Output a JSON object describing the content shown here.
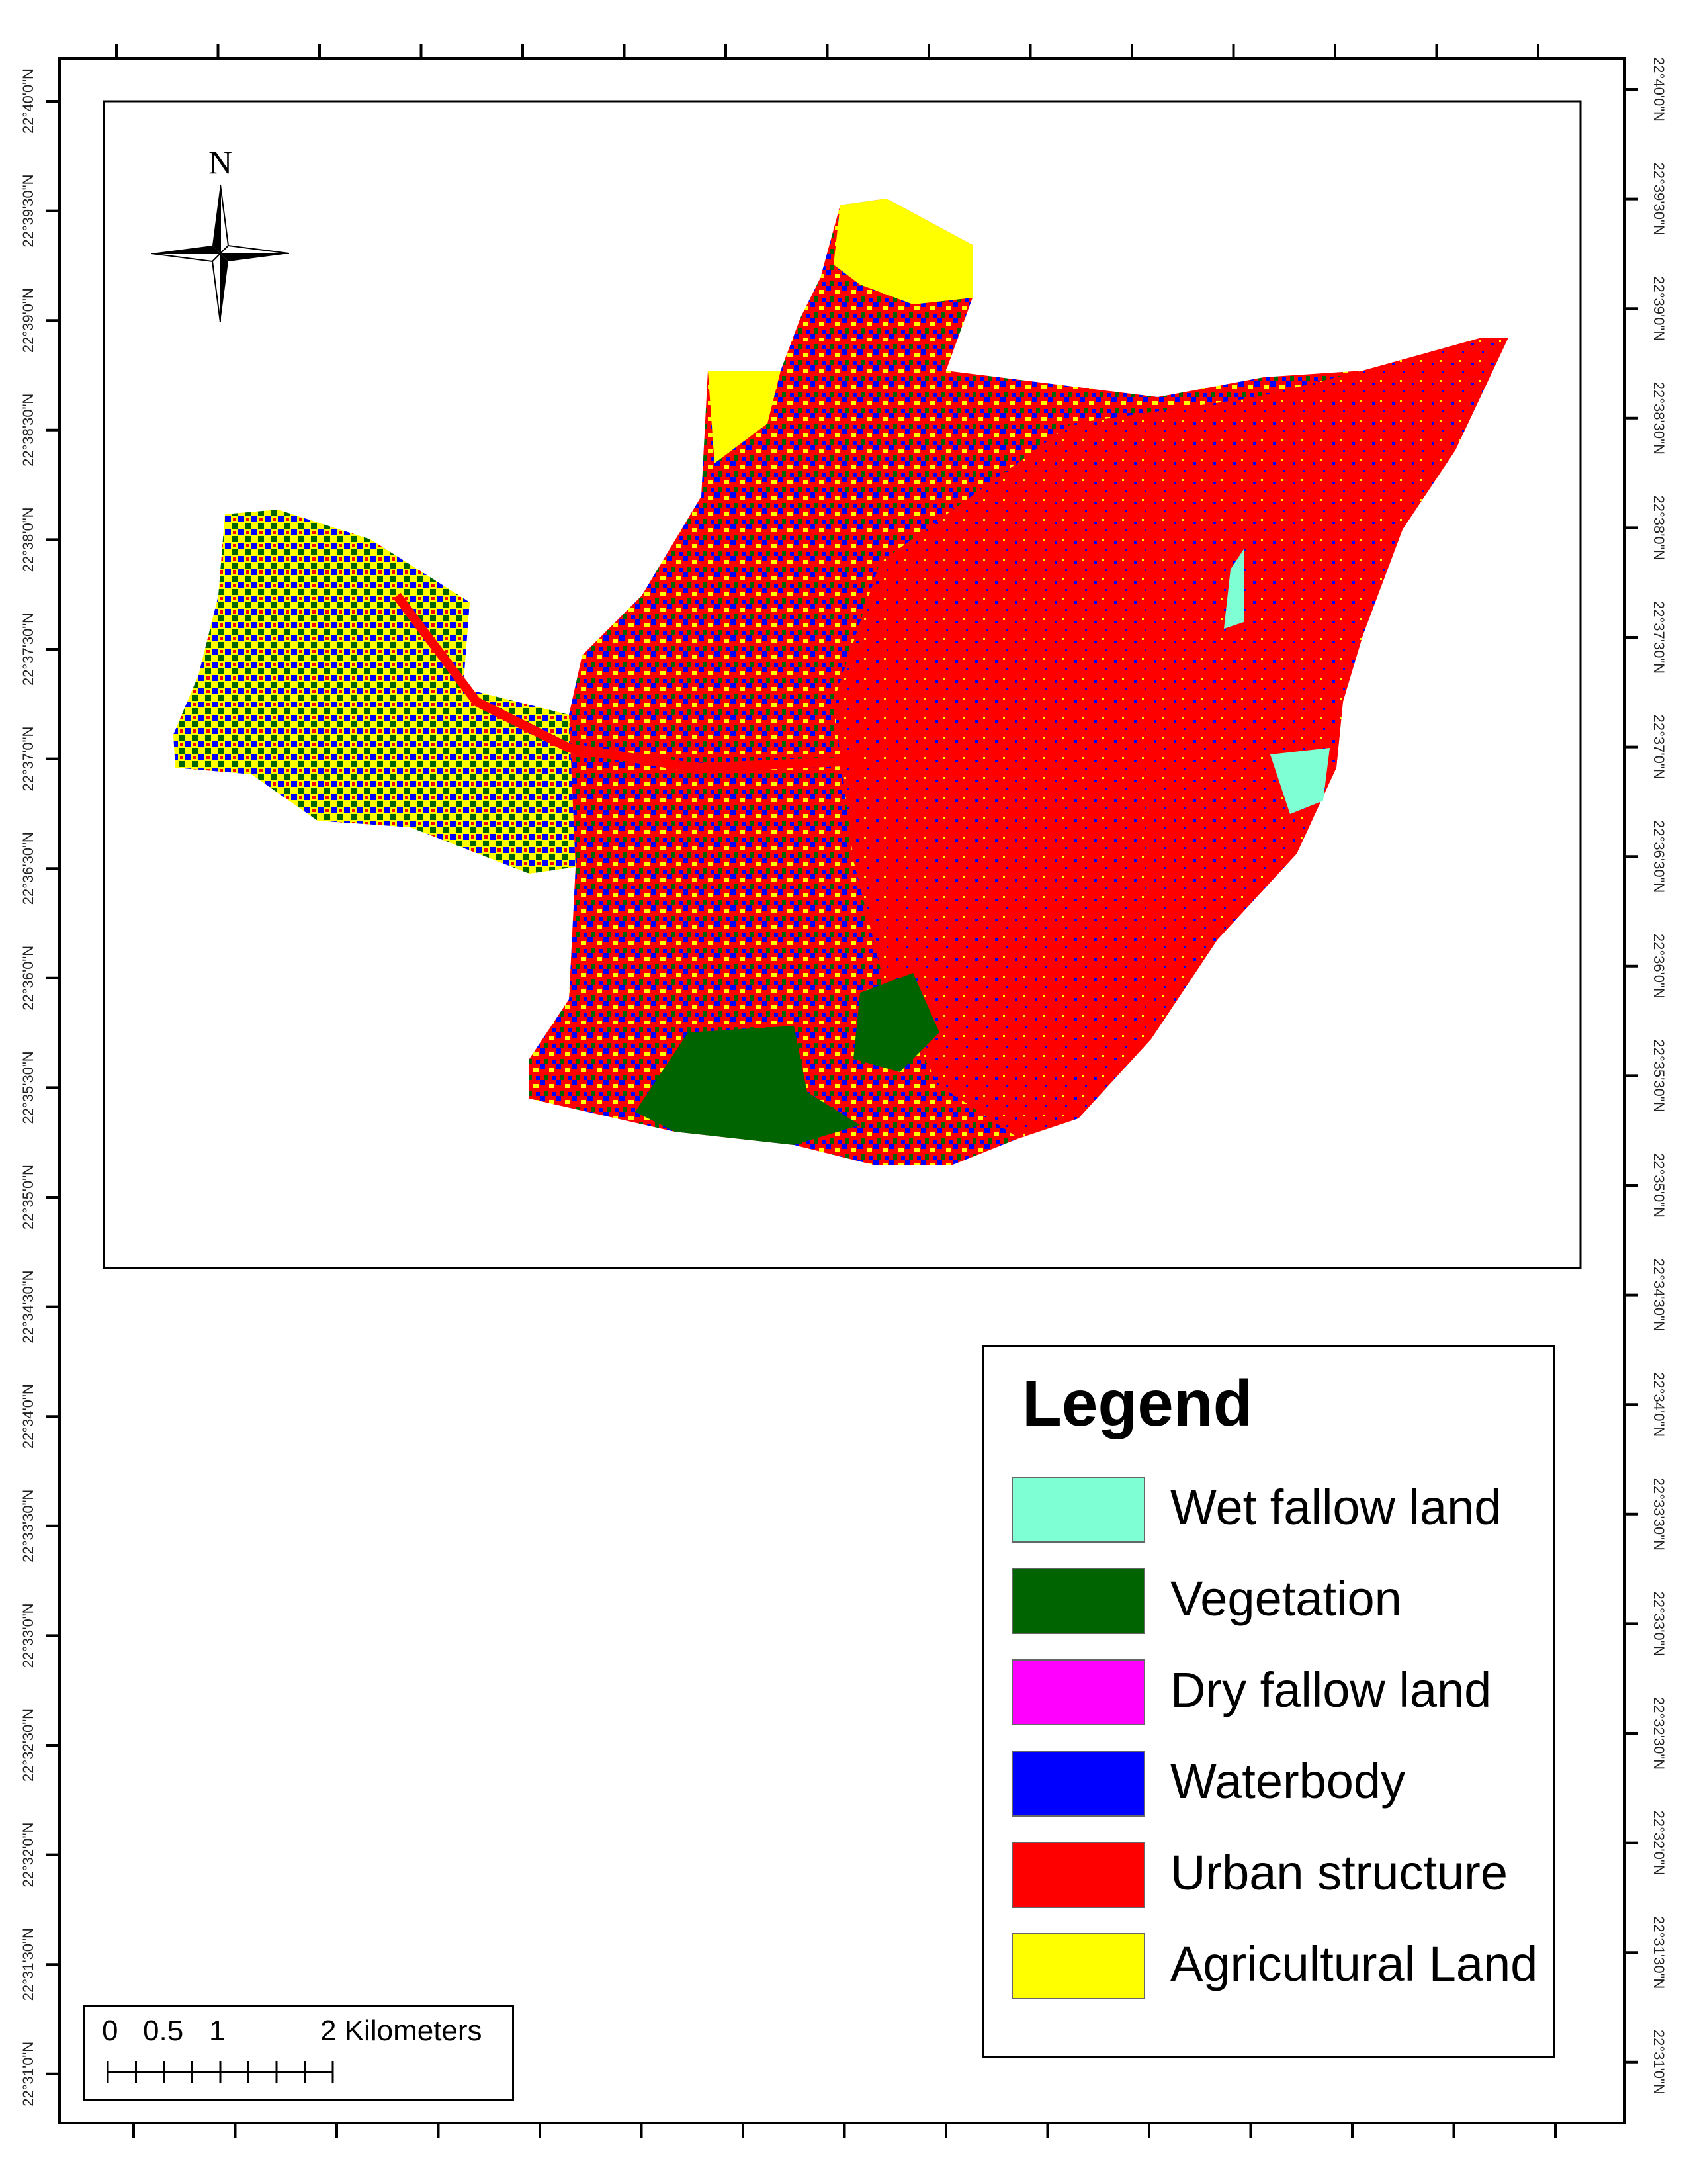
{
  "map": {
    "north_label": "N",
    "lat_ticks": [
      "22°40'0\"N",
      "22°39'30\"N",
      "22°39'0\"N",
      "22°38'30\"N",
      "22°38'0\"N",
      "22°37'30\"N",
      "22°37'0\"N",
      "22°36'30\"N",
      "22°36'0\"N",
      "22°35'30\"N",
      "22°35'0\"N",
      "22°34'30\"N",
      "22°34'0\"N",
      "22°33'30\"N",
      "22°33'0\"N",
      "22°32'30\"N",
      "22°32'0\"N",
      "22°31'30\"N",
      "22°31'0\"N"
    ]
  },
  "legend": {
    "title": "Legend",
    "items": [
      {
        "label": "Wet fallow land",
        "color": "#7fffd4"
      },
      {
        "label": "Vegetation",
        "color": "#006400"
      },
      {
        "label": "Dry fallow land",
        "color": "#ff00ff"
      },
      {
        "label": "Waterbody",
        "color": "#0000ff"
      },
      {
        "label": "Urban structure",
        "color": "#ff0000"
      },
      {
        "label": "Agricultural Land",
        "color": "#ffff00"
      }
    ]
  },
  "scale_bar": {
    "labels": [
      "0",
      "0.5",
      "1",
      "2 Kilometers"
    ]
  }
}
